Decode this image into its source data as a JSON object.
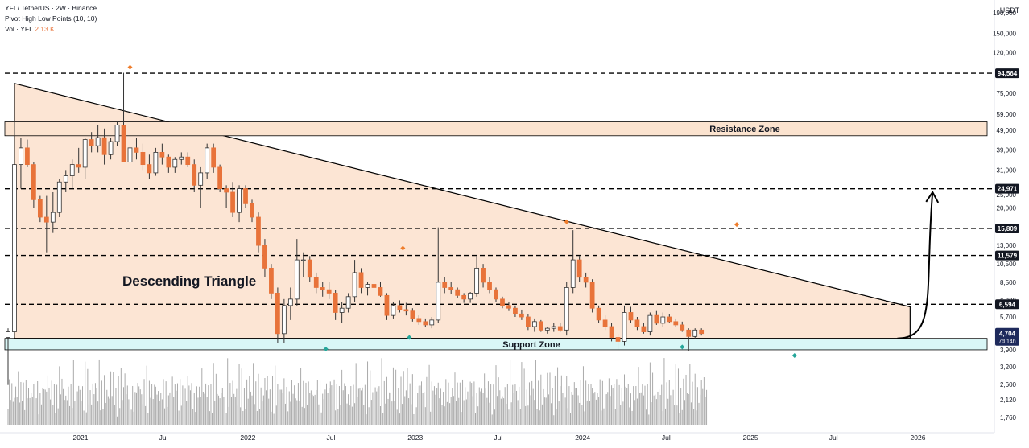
{
  "legend": {
    "symbol": "YFI / TetherUS · 2W · Binance",
    "indicator": "Pivot High Low Points (10, 10)",
    "volume_label": "Vol · YFI",
    "volume_value": "2.13 K"
  },
  "colors": {
    "up": "#ffffff",
    "down": "#e8733a",
    "pivot_high": "#ef7d2c",
    "pivot_low": "#26a69a",
    "triangle_fill": "#fbdcc5",
    "resistance_fill": "#fbe3cf",
    "support_fill": "#d9f6f6",
    "volume": "#aaaaaa",
    "price_tag_bg": "#131722",
    "current_tag_bg": "#1e2a5c"
  },
  "chart_data": {
    "type": "candlestick",
    "title": "YFI / TetherUS · 2W · Binance",
    "y_scale": "log",
    "yaxis_unit": "USDT",
    "ylim": [
      1500,
      220000
    ],
    "xlim": [
      "2020-07-20",
      "2026-06-15"
    ],
    "y_ticks": [
      "190,000",
      "150,000",
      "120,000",
      "75,000",
      "59,000",
      "49,000",
      "39,000",
      "31,000",
      "25,000",
      "20,000",
      "16,000",
      "13,000",
      "10,500",
      "8,500",
      "6,900",
      "5,700",
      "3,900",
      "3,200",
      "2,600",
      "2,120",
      "1,760"
    ],
    "x_ticks": [
      {
        "label": "2021",
        "date": "2021-01-01"
      },
      {
        "label": "Jul",
        "date": "2021-07-01"
      },
      {
        "label": "2022",
        "date": "2022-01-01"
      },
      {
        "label": "Jul",
        "date": "2022-07-01"
      },
      {
        "label": "2023",
        "date": "2023-01-01"
      },
      {
        "label": "Jul",
        "date": "2023-07-01"
      },
      {
        "label": "2024",
        "date": "2024-01-01"
      },
      {
        "label": "Jul",
        "date": "2024-07-01"
      },
      {
        "label": "2025",
        "date": "2025-01-01"
      },
      {
        "label": "Jul",
        "date": "2025-07-01"
      },
      {
        "label": "2026",
        "date": "2026-01-01"
      }
    ],
    "candle_interval_days": 14,
    "first_candle_date": "2020-07-27",
    "candles_ohlc": [
      [
        4500,
        5000,
        2600,
        4800
      ],
      [
        4800,
        55000,
        4500,
        33000
      ],
      [
        33000,
        45000,
        25000,
        40000
      ],
      [
        40000,
        44000,
        32000,
        33000
      ],
      [
        33000,
        34000,
        20000,
        22000
      ],
      [
        22000,
        23000,
        17000,
        18000
      ],
      [
        18000,
        23000,
        12000,
        17000
      ],
      [
        17000,
        24000,
        15000,
        19000
      ],
      [
        19000,
        28000,
        18000,
        27000
      ],
      [
        27000,
        31000,
        24000,
        29000
      ],
      [
        29000,
        35000,
        25000,
        33000
      ],
      [
        33000,
        40000,
        30000,
        32000
      ],
      [
        32000,
        45000,
        28000,
        44000
      ],
      [
        44000,
        48000,
        38000,
        41000
      ],
      [
        41000,
        52000,
        38000,
        45000
      ],
      [
        45000,
        50000,
        33000,
        37000
      ],
      [
        37000,
        45000,
        35000,
        43000
      ],
      [
        43000,
        54000,
        41000,
        52000
      ],
      [
        52000,
        95000,
        44000,
        34000
      ],
      [
        34000,
        44000,
        30000,
        40000
      ],
      [
        40000,
        45000,
        35000,
        38000
      ],
      [
        38000,
        42000,
        31000,
        33000
      ],
      [
        33000,
        37000,
        28000,
        30000
      ],
      [
        30000,
        40000,
        29000,
        38000
      ],
      [
        38000,
        42000,
        33000,
        36000
      ],
      [
        36000,
        37000,
        30000,
        32000
      ],
      [
        32000,
        36000,
        30000,
        35000
      ],
      [
        35000,
        38000,
        33000,
        36000
      ],
      [
        36000,
        38000,
        32000,
        33000
      ],
      [
        33000,
        35000,
        24000,
        26000
      ],
      [
        26000,
        32000,
        20000,
        30000
      ],
      [
        30000,
        42000,
        28000,
        40000
      ],
      [
        40000,
        42000,
        30000,
        32000
      ],
      [
        32000,
        33000,
        24000,
        25000
      ],
      [
        25000,
        26000,
        20000,
        24000
      ],
      [
        24000,
        27000,
        18000,
        19000
      ],
      [
        19000,
        26000,
        17000,
        25000
      ],
      [
        25000,
        26000,
        20000,
        21000
      ],
      [
        21000,
        22000,
        17000,
        18000
      ],
      [
        18000,
        19000,
        12000,
        13000
      ],
      [
        13000,
        14000,
        9000,
        10000
      ],
      [
        10000,
        10500,
        7000,
        7500
      ],
      [
        7500,
        8000,
        4200,
        4700
      ],
      [
        4700,
        7000,
        4200,
        6500
      ],
      [
        6500,
        8000,
        5500,
        7000
      ],
      [
        7000,
        14000,
        6500,
        11000
      ],
      [
        11000,
        12000,
        9000,
        11000
      ],
      [
        11000,
        11500,
        8500,
        9000
      ],
      [
        9000,
        9500,
        7500,
        8000
      ],
      [
        8000,
        8500,
        7200,
        7800
      ],
      [
        7800,
        8500,
        7000,
        7500
      ],
      [
        7500,
        7800,
        5500,
        6000
      ],
      [
        6000,
        6800,
        5300,
        6300
      ],
      [
        6300,
        7500,
        6000,
        7200
      ],
      [
        7200,
        11000,
        6800,
        9500
      ],
      [
        9500,
        10000,
        7500,
        8000
      ],
      [
        8000,
        8500,
        7300,
        8300
      ],
      [
        8300,
        8800,
        7800,
        8000
      ],
      [
        8000,
        8500,
        7200,
        7300
      ],
      [
        7300,
        7500,
        5500,
        5800
      ],
      [
        5800,
        6800,
        5600,
        6500
      ],
      [
        6500,
        6900,
        6000,
        6200
      ],
      [
        6200,
        6700,
        5800,
        6100
      ],
      [
        6100,
        6300,
        5400,
        5600
      ],
      [
        5600,
        5800,
        5200,
        5400
      ],
      [
        5400,
        5600,
        5100,
        5200
      ],
      [
        5200,
        5700,
        5000,
        5500
      ],
      [
        5500,
        16000,
        5300,
        8500
      ],
      [
        8500,
        9000,
        7500,
        8000
      ],
      [
        8000,
        8500,
        7400,
        7800
      ],
      [
        7800,
        8000,
        7100,
        7300
      ],
      [
        7300,
        7500,
        6700,
        7000
      ],
      [
        7000,
        7600,
        6700,
        7500
      ],
      [
        7500,
        11500,
        7200,
        10000
      ],
      [
        10000,
        10500,
        8000,
        8500
      ],
      [
        8500,
        9000,
        7500,
        7800
      ],
      [
        7800,
        8000,
        6800,
        7000
      ],
      [
        7000,
        7200,
        6300,
        6500
      ],
      [
        6500,
        6800,
        6100,
        6300
      ],
      [
        6300,
        6500,
        5700,
        5900
      ],
      [
        5900,
        6200,
        5500,
        5700
      ],
      [
        5700,
        5900,
        4900,
        5100
      ],
      [
        5100,
        5600,
        4800,
        5400
      ],
      [
        5400,
        5500,
        4800,
        4900
      ],
      [
        4900,
        5100,
        4700,
        5000
      ],
      [
        5000,
        5300,
        4800,
        5100
      ],
      [
        5100,
        5300,
        4800,
        4900
      ],
      [
        4900,
        8500,
        4600,
        8000
      ],
      [
        8000,
        15500,
        7500,
        11000
      ],
      [
        11000,
        11500,
        8500,
        9000
      ],
      [
        9000,
        9500,
        8000,
        8500
      ],
      [
        8500,
        8800,
        6000,
        6300
      ],
      [
        6300,
        6500,
        5300,
        5500
      ],
      [
        5500,
        5800,
        4900,
        5100
      ],
      [
        5100,
        5300,
        4300,
        4500
      ],
      [
        4500,
        4700,
        3900,
        4300
      ],
      [
        4300,
        6500,
        4100,
        6000
      ],
      [
        6000,
        6400,
        5300,
        5500
      ],
      [
        5500,
        5700,
        4900,
        5100
      ],
      [
        5100,
        5300,
        4700,
        4800
      ],
      [
        4800,
        6000,
        4600,
        5800
      ],
      [
        5800,
        6100,
        5200,
        5300
      ],
      [
        5300,
        6000,
        5100,
        5700
      ],
      [
        5700,
        5900,
        5300,
        5400
      ],
      [
        5400,
        5600,
        5100,
        5200
      ],
      [
        5200,
        5400,
        4800,
        4900
      ],
      [
        4900,
        5000,
        3850,
        4550
      ],
      [
        4550,
        5000,
        4400,
        4900
      ],
      [
        4900,
        5000,
        4600,
        4704
      ]
    ],
    "volume_k": [
      [
        3.6,
        2.6
      ],
      [
        3.2,
        2.5
      ],
      [
        2.1,
        1.8
      ],
      [
        2.8,
        2.2
      ],
      [
        3.4,
        2.3
      ],
      [
        2.5,
        3.8
      ],
      [
        2.4,
        2.5
      ],
      [
        2.6,
        2.9
      ],
      [
        2.3,
        2.2
      ],
      [
        2.3,
        1.9
      ]
    ],
    "volume_note": "volume bars in the lower pane, relative heights only",
    "pivot_highs": [
      {
        "date": "2021-04-19",
        "value": 95000
      },
      {
        "date": "2022-12-05",
        "value": 11800
      },
      {
        "date": "2023-11-27",
        "value": 16000
      },
      {
        "date": "2024-12-02",
        "value": 15500
      }
    ],
    "pivot_lows": [
      {
        "date": "2022-06-20",
        "value": 4200
      },
      {
        "date": "2022-12-19",
        "value": 4800
      },
      {
        "date": "2024-08-05",
        "value": 4300
      },
      {
        "date": "2025-04-07",
        "value": 3900
      }
    ],
    "horizontal_levels": [
      94564,
      24971,
      15809,
      11579,
      6594
    ],
    "price_tags": [
      {
        "label": "94,564",
        "value": 94564
      },
      {
        "label": "24,971",
        "value": 24971
      },
      {
        "label": "15,809",
        "value": 15809
      },
      {
        "label": "11,579",
        "value": 11579
      },
      {
        "label": "6,594",
        "value": 6594
      }
    ],
    "current_price": {
      "label": "4,704",
      "sub": "7d 14h",
      "value": 4704
    },
    "resistance_zone": {
      "label": "Resistance Zone",
      "low": 46000,
      "high": 54000
    },
    "support_zone": {
      "label": "Support Zone",
      "low": 3900,
      "high": 4450
    },
    "pattern": {
      "label": "Descending Triangle",
      "points": [
        {
          "date": "2020-08-10",
          "value": 84000
        },
        {
          "date": "2025-12-15",
          "value": 6400
        },
        {
          "date": "2025-12-15",
          "value": 4450
        },
        {
          "date": "2020-08-10",
          "value": 4450
        }
      ]
    },
    "projection_arrow": {
      "from": {
        "date": "2025-11-17",
        "value": 4450
      },
      "to": {
        "date": "2026-02-02",
        "value": 24000
      }
    }
  }
}
